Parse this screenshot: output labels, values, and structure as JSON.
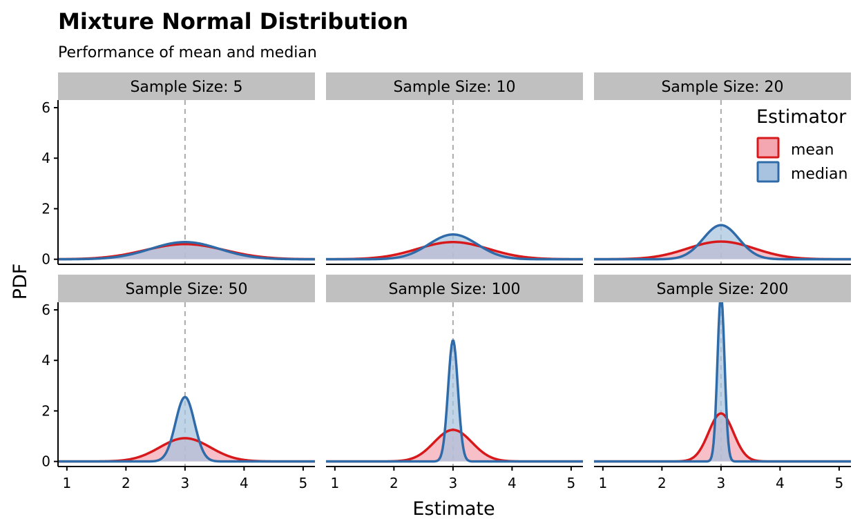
{
  "chart_data": {
    "type": "area",
    "title": "Mixture Normal Distribution",
    "subtitle": "Performance of mean and median",
    "xlabel": "Estimate",
    "ylabel": "PDF",
    "xlim": [
      0.85,
      5.2
    ],
    "ylim": [
      -0.2,
      6.3
    ],
    "x_ticks": [
      1,
      2,
      3,
      4,
      5
    ],
    "y_ticks": [
      0,
      2,
      4,
      6
    ],
    "reference_line_x": 3,
    "grid": false,
    "legend": {
      "title": "Estimator",
      "placement": "top-right",
      "entries": [
        "mean",
        "median"
      ]
    },
    "colors": {
      "mean_line": "#d7191c",
      "mean_fill": "#f4a6b1",
      "median_line": "#2f6ba8",
      "median_fill": "#a7c3df",
      "strip_bg": "#c0c0c0",
      "ref_line": "#aaaaaa"
    },
    "panels": [
      {
        "label": "Sample Size: 5",
        "series": [
          {
            "name": "mean",
            "peak_x": 3.0,
            "peak_y": 0.6,
            "spread": 0.67
          },
          {
            "name": "median",
            "peak_x": 3.0,
            "peak_y": 0.68,
            "spread": 0.58
          }
        ]
      },
      {
        "label": "Sample Size: 10",
        "series": [
          {
            "name": "mean",
            "peak_x": 3.0,
            "peak_y": 0.68,
            "spread": 0.6
          },
          {
            "name": "median",
            "peak_x": 3.0,
            "peak_y": 0.98,
            "spread": 0.41
          }
        ]
      },
      {
        "label": "Sample Size: 20",
        "series": [
          {
            "name": "mean",
            "peak_x": 3.0,
            "peak_y": 0.7,
            "spread": 0.57
          },
          {
            "name": "median",
            "peak_x": 3.0,
            "peak_y": 1.35,
            "spread": 0.3
          }
        ]
      },
      {
        "label": "Sample Size: 50",
        "series": [
          {
            "name": "mean",
            "peak_x": 3.0,
            "peak_y": 0.92,
            "spread": 0.43
          },
          {
            "name": "median",
            "peak_x": 3.0,
            "peak_y": 2.55,
            "spread": 0.16
          }
        ]
      },
      {
        "label": "Sample Size: 100",
        "series": [
          {
            "name": "mean",
            "peak_x": 3.0,
            "peak_y": 1.25,
            "spread": 0.32
          },
          {
            "name": "median",
            "peak_x": 3.0,
            "peak_y": 4.8,
            "spread": 0.083
          }
        ]
      },
      {
        "label": "Sample Size: 200",
        "series": [
          {
            "name": "mean",
            "peak_x": 3.0,
            "peak_y": 1.9,
            "spread": 0.21
          },
          {
            "name": "median",
            "peak_x": 3.0,
            "peak_y": 6.6,
            "spread": 0.06
          }
        ]
      }
    ]
  }
}
